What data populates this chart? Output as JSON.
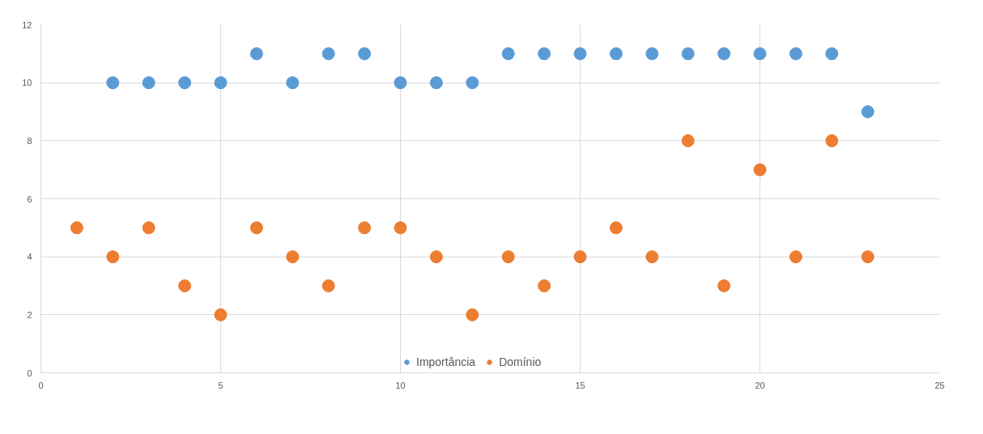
{
  "chart_data": {
    "type": "scatter",
    "series": [
      {
        "name": "Importância",
        "color": "#5b9bd5",
        "x": [
          2,
          3,
          4,
          5,
          6,
          7,
          8,
          9,
          10,
          11,
          12,
          13,
          14,
          15,
          16,
          17,
          18,
          19,
          20,
          21,
          22,
          23
        ],
        "values": [
          10,
          10,
          10,
          10,
          11,
          10,
          11,
          11,
          10,
          10,
          10,
          11,
          11,
          11,
          11,
          11,
          11,
          11,
          11,
          11,
          11,
          9
        ]
      },
      {
        "name": "Domínio",
        "color": "#ed7d31",
        "x": [
          1,
          2,
          3,
          4,
          5,
          6,
          7,
          8,
          9,
          10,
          11,
          12,
          13,
          14,
          15,
          16,
          17,
          18,
          19,
          20,
          21,
          22,
          23
        ],
        "values": [
          5,
          4,
          5,
          3,
          2,
          5,
          4,
          3,
          5,
          5,
          4,
          2,
          4,
          3,
          4,
          5,
          4,
          8,
          3,
          7,
          4,
          8,
          4
        ]
      }
    ],
    "xlim": [
      0,
      25
    ],
    "xticks": [
      0,
      5,
      10,
      15,
      20,
      25
    ],
    "ylim": [
      0,
      12
    ],
    "yticks": [
      0,
      2,
      4,
      6,
      8,
      10,
      12
    ],
    "grid": true,
    "legend": "bottom",
    "marker": "circle"
  }
}
